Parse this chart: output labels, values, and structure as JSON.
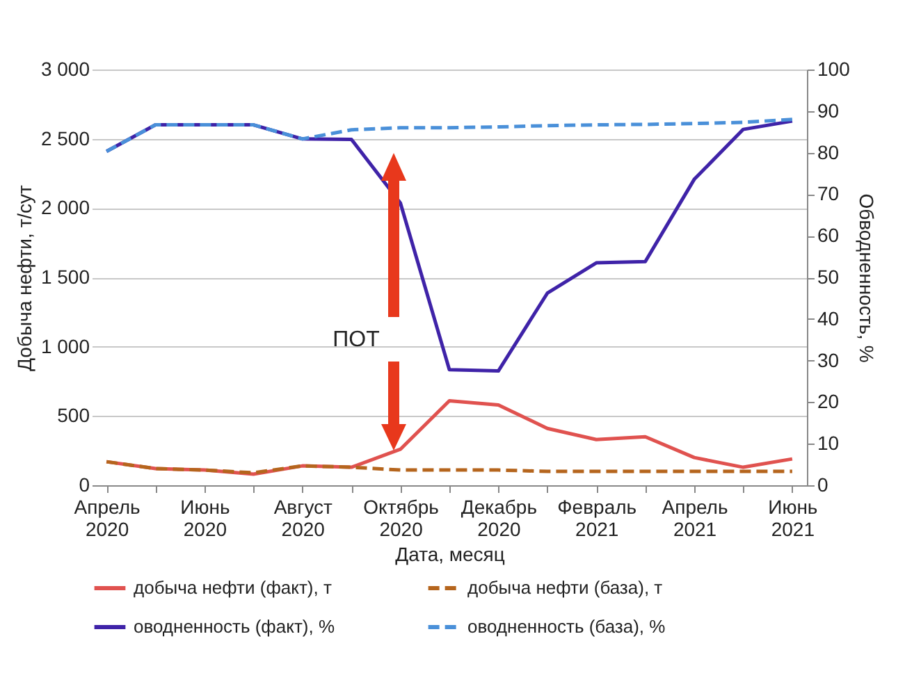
{
  "chart_data": {
    "type": "line",
    "xlabel": "Дата, месяц",
    "ylabel": "Добыча нефти, т/сут",
    "y2label": "Обводненность, %",
    "categories": [
      "Апрель 2020",
      null,
      "Июнь 2020",
      null,
      "Август 2020",
      null,
      "Октябрь 2020",
      null,
      "Декабрь 2020",
      null,
      "Февраль 2021",
      null,
      "Апрель 2021",
      null,
      "Июнь 2021"
    ],
    "series": [
      {
        "name": "добыча нефти (факт), т",
        "color": "#e0524f",
        "line_style": "solid",
        "values": [
          170,
          120,
          110,
          80,
          140,
          130,
          260,
          610,
          580,
          410,
          330,
          350,
          200,
          130,
          190
        ]
      },
      {
        "name": "добыча нефти (база), т",
        "color": "#b5651d",
        "line_style": "dashed",
        "values": [
          170,
          120,
          110,
          90,
          140,
          130,
          110,
          110,
          110,
          100,
          100,
          100,
          100,
          100,
          100
        ]
      },
      {
        "name": "оводненность (факт), %",
        "color": "#3f23a8",
        "line_style": "solid",
        "axis": "y2",
        "values": [
          80.3,
          86.7,
          86.7,
          86.7,
          83.3,
          83.2,
          67.9,
          27.8,
          27.5,
          46.2,
          53.5,
          53.8,
          73.6,
          85.6,
          87.6
        ]
      },
      {
        "name": "оводненность (база), %",
        "color": "#4a90d9",
        "line_style": "dashed",
        "axis": "y2",
        "values": [
          80.3,
          86.7,
          86.7,
          86.7,
          83.3,
          85.5,
          86,
          86,
          86.2,
          86.5,
          86.7,
          86.8,
          87,
          87.3,
          88
        ]
      }
    ],
    "ylim": [
      0,
      3000
    ],
    "yticks": [
      0,
      {
        "value": 500,
        "label": "500"
      },
      {
        "value": 1000,
        "label": "1 000"
      },
      {
        "value": 1500,
        "label": "1 500"
      },
      {
        "value": 2000,
        "label": "2 000"
      },
      {
        "value": 2500,
        "label": "2 500"
      },
      {
        "value": 3000,
        "label": "3 000"
      }
    ],
    "y2lim": [
      0,
      100
    ],
    "y2ticks": [
      0,
      10,
      20,
      30,
      40,
      50,
      60,
      70,
      80,
      90,
      100
    ],
    "grid": "y",
    "legend": "bottom",
    "marker": "none",
    "annotations": [
      "ПОТ"
    ]
  }
}
